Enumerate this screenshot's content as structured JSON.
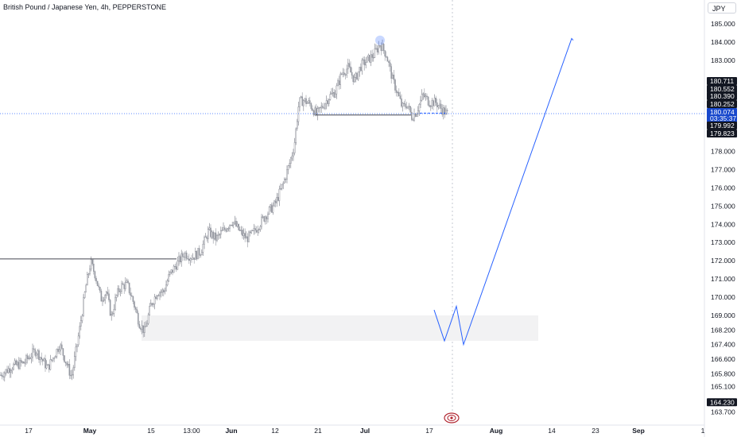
{
  "header": {
    "symbol_title": "British Pound / Japanese Yen, 4h, PEPPERSTONE",
    "currency": "JPY"
  },
  "colors": {
    "up": "#787b86",
    "down": "#9598a1",
    "projection": "#2962ff",
    "price_line": "#2962ff",
    "label_dark": "#131722",
    "label_blue": "#1848cc"
  },
  "chart_data": {
    "type": "candlestick",
    "symbol": "GBPJPY",
    "timeframe": "4h",
    "ylim": [
      163.6,
      185.5
    ],
    "y_ticks": [
      {
        "value": 185.0,
        "label": "185.000"
      },
      {
        "value": 184.0,
        "label": "184.000"
      },
      {
        "value": 183.0,
        "label": "183.000"
      },
      {
        "value": 178.0,
        "label": "178.000"
      },
      {
        "value": 177.0,
        "label": "177.000"
      },
      {
        "value": 176.0,
        "label": "176.000"
      },
      {
        "value": 175.0,
        "label": "175.000"
      },
      {
        "value": 174.0,
        "label": "174.000"
      },
      {
        "value": 173.0,
        "label": "173.000"
      },
      {
        "value": 172.0,
        "label": "172.000"
      },
      {
        "value": 171.0,
        "label": "171.000"
      },
      {
        "value": 170.0,
        "label": "170.000"
      },
      {
        "value": 169.0,
        "label": "169.000"
      },
      {
        "value": 168.2,
        "label": "168.200"
      },
      {
        "value": 167.4,
        "label": "167.400"
      },
      {
        "value": 166.6,
        "label": "166.600"
      },
      {
        "value": 165.8,
        "label": "165.800"
      },
      {
        "value": 165.1,
        "label": "165.100"
      },
      {
        "value": 163.7,
        "label": "163.700"
      }
    ],
    "price_labels": [
      {
        "value": 180.711,
        "label": "180.711",
        "style": "dark"
      },
      {
        "value": 180.552,
        "label": "180.552",
        "style": "dark"
      },
      {
        "value": 180.39,
        "label": "180.390",
        "style": "dark"
      },
      {
        "value": 180.252,
        "label": "180.252",
        "style": "dark"
      },
      {
        "value": 180.074,
        "label": "180.074",
        "style": "blue",
        "sublabel": "03:35:37"
      },
      {
        "value": 179.992,
        "label": "179.992",
        "style": "dark"
      },
      {
        "value": 179.823,
        "label": "179.823",
        "style": "dark"
      },
      {
        "value": 164.23,
        "label": "164.230",
        "style": "dark"
      }
    ],
    "last_price": 180.074,
    "countdown": "03:35:37",
    "x_labels": [
      "17",
      "May",
      "15",
      "13:00",
      "Jun",
      "12",
      "21",
      "Jul",
      "17",
      "Aug",
      "14",
      "23",
      "Sep",
      "1"
    ],
    "bold_x_labels": [
      "May",
      "Jun",
      "Jul",
      "Aug",
      "Sep"
    ],
    "candle_path": [
      [
        0,
        165.7
      ],
      [
        15,
        166.2
      ],
      [
        30,
        166.4
      ],
      [
        45,
        167.1
      ],
      [
        60,
        166.1
      ],
      [
        75,
        167.4
      ],
      [
        90,
        165.6
      ],
      [
        100,
        168.2
      ],
      [
        108,
        170.6
      ],
      [
        114,
        171.9
      ],
      [
        120,
        171.2
      ],
      [
        127,
        169.9
      ],
      [
        134,
        170.3
      ],
      [
        140,
        168.9
      ],
      [
        146,
        170.0
      ],
      [
        152,
        170.6
      ],
      [
        160,
        170.7
      ],
      [
        168,
        169.7
      ],
      [
        175,
        168.6
      ],
      [
        182,
        168.1
      ],
      [
        190,
        169.6
      ],
      [
        198,
        170.3
      ],
      [
        206,
        170.3
      ],
      [
        213,
        171.2
      ],
      [
        222,
        171.8
      ],
      [
        232,
        172.4
      ],
      [
        242,
        172.2
      ],
      [
        252,
        172.5
      ],
      [
        262,
        173.6
      ],
      [
        272,
        173.2
      ],
      [
        282,
        173.7
      ],
      [
        292,
        174.2
      ],
      [
        300,
        173.7
      ],
      [
        310,
        173.2
      ],
      [
        318,
        173.5
      ],
      [
        326,
        174.0
      ],
      [
        336,
        174.6
      ],
      [
        346,
        175.1
      ],
      [
        356,
        176.2
      ],
      [
        364,
        177.3
      ],
      [
        370,
        178.3
      ],
      [
        376,
        180.7
      ],
      [
        382,
        180.8
      ],
      [
        390,
        180.6
      ],
      [
        398,
        180.0
      ],
      [
        406,
        180.5
      ],
      [
        414,
        181.0
      ],
      [
        422,
        181.3
      ],
      [
        430,
        182.3
      ],
      [
        438,
        182.6
      ],
      [
        446,
        181.9
      ],
      [
        454,
        182.7
      ],
      [
        462,
        183.0
      ],
      [
        470,
        183.3
      ],
      [
        478,
        183.9
      ],
      [
        486,
        183.3
      ],
      [
        494,
        181.9
      ],
      [
        500,
        181.2
      ],
      [
        506,
        180.4
      ],
      [
        512,
        180.6
      ],
      [
        518,
        179.9
      ],
      [
        524,
        180.2
      ],
      [
        532,
        181.1
      ],
      [
        540,
        180.7
      ],
      [
        548,
        180.7
      ],
      [
        556,
        180.3
      ],
      [
        564,
        180.0
      ]
    ],
    "horizontal_levels": [
      {
        "value": 172.1,
        "x_start": 0,
        "x_end": 222,
        "style": "solid"
      },
      {
        "value": 180.0,
        "x_start": 397,
        "x_end": 517,
        "style": "solid"
      },
      {
        "value": 180.1,
        "x_start": 528,
        "x_end": 560,
        "style": "dashed"
      }
    ],
    "demand_zone": {
      "top": 169.0,
      "bottom": 167.6,
      "x_start": 178,
      "x_end": 677
    },
    "highlight_marker": {
      "value": 184.1,
      "x": 478
    },
    "projection_path": [
      {
        "x": 546,
        "price": 169.3
      },
      {
        "x": 559,
        "price": 167.6
      },
      {
        "x": 574,
        "price": 169.5
      },
      {
        "x": 583,
        "price": 167.4
      },
      {
        "x": 719,
        "price": 184.2
      },
      {
        "x": 721,
        "price": 184.1
      }
    ]
  }
}
